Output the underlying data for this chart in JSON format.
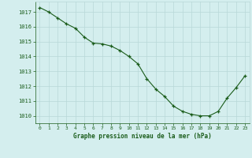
{
  "x": [
    0,
    1,
    2,
    3,
    4,
    5,
    6,
    7,
    8,
    9,
    10,
    11,
    12,
    13,
    14,
    15,
    16,
    17,
    18,
    19,
    20,
    21,
    22,
    23
  ],
  "y": [
    1017.3,
    1017.0,
    1016.6,
    1016.2,
    1015.9,
    1015.3,
    1014.9,
    1014.85,
    1014.7,
    1014.4,
    1014.0,
    1013.5,
    1012.5,
    1011.8,
    1011.3,
    1010.65,
    1010.3,
    1010.1,
    1010.0,
    1010.0,
    1010.3,
    1011.2,
    1011.9,
    1012.7
  ],
  "line_color": "#1a5c1a",
  "marker": "+",
  "marker_color": "#1a5c1a",
  "bg_color": "#d4eeee",
  "grid_color": "#b8d8d8",
  "tick_color": "#1a5c1a",
  "label_color": "#1a5c1a",
  "xlabel": "Graphe pression niveau de la mer (hPa)",
  "ylim": [
    1009.5,
    1017.7
  ],
  "yticks": [
    1010,
    1011,
    1012,
    1013,
    1014,
    1015,
    1016,
    1017
  ],
  "xticks": [
    0,
    1,
    2,
    3,
    4,
    5,
    6,
    7,
    8,
    9,
    10,
    11,
    12,
    13,
    14,
    15,
    16,
    17,
    18,
    19,
    20,
    21,
    22,
    23
  ]
}
